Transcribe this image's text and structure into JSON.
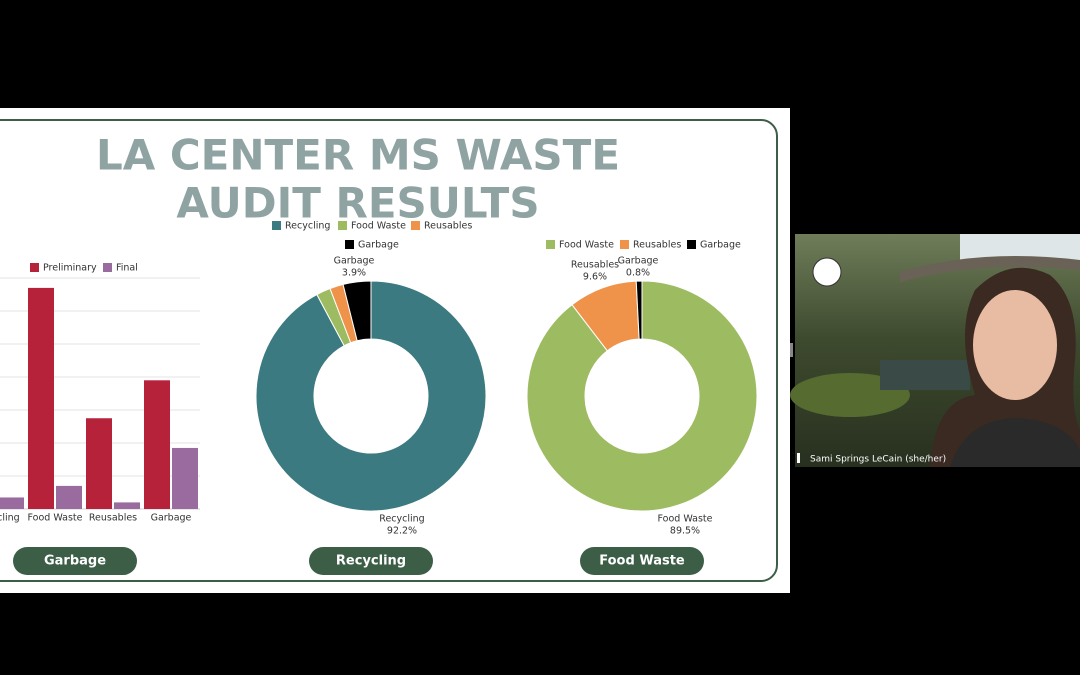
{
  "slide": {
    "title_lines": [
      "LA CENTER MS WASTE",
      "AUDIT RESULTS"
    ],
    "bar_chart": {
      "type": "bar",
      "categories": [
        "Recycling",
        "Food Waste",
        "Reusables",
        "Garbage"
      ],
      "series": [
        {
          "name": "Preliminary",
          "color": "#b5223a",
          "values": [
            null,
            6.7,
            2.75,
            3.9
          ]
        },
        {
          "name": "Final",
          "color": "#9a6b9e",
          "values": [
            0.35,
            0.7,
            0.2,
            1.85
          ]
        }
      ],
      "ylim": [
        0,
        7
      ],
      "grid_values": [
        1,
        2,
        3,
        4,
        5,
        6,
        7
      ],
      "button": "Garbage"
    },
    "donuts": [
      {
        "type": "donut",
        "button": "Recycling",
        "categories": [
          "Recycling",
          "Food Waste",
          "Reusables",
          "Garbage"
        ],
        "colors": [
          "#3b7a80",
          "#9dbb61",
          "#f0934a",
          "#000000"
        ],
        "values": [
          92.2,
          2.0,
          1.9,
          3.9
        ],
        "value_labels": [
          "92.2%",
          null,
          null,
          "3.9%"
        ]
      },
      {
        "type": "donut",
        "button": "Food Waste",
        "categories": [
          "Food Waste",
          "Reusables",
          "Garbage"
        ],
        "colors": [
          "#9dbb61",
          "#f0934a",
          "#000000"
        ],
        "values": [
          89.5,
          9.6,
          0.8
        ],
        "value_labels": [
          "89.5%",
          "9.6%",
          "0.8%"
        ]
      }
    ]
  },
  "video": {
    "participant_name": "Sami Springs LeCain (she/her)"
  }
}
